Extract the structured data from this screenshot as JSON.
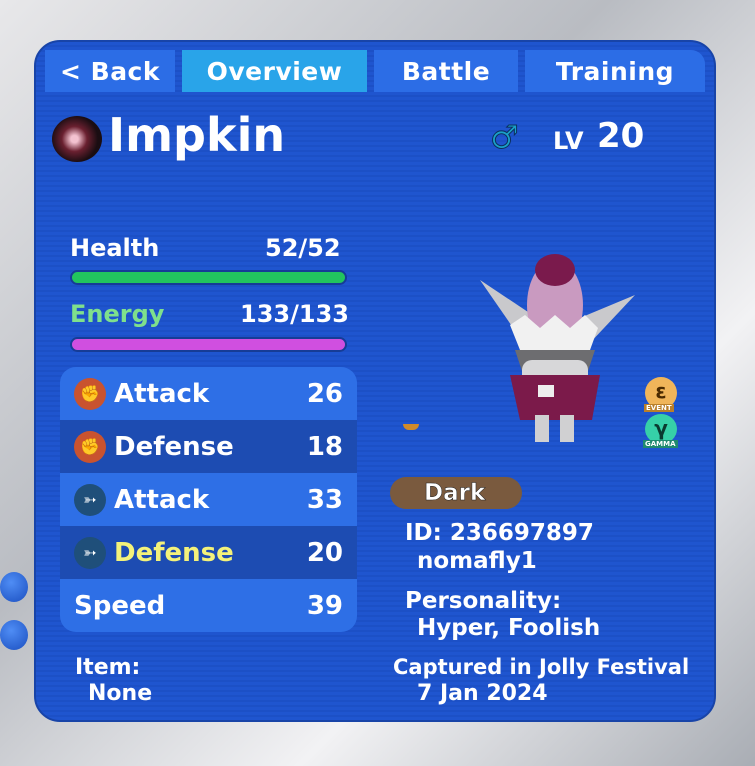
{
  "tabs": [
    {
      "label": "< Back"
    },
    {
      "label": "Overview",
      "active": true
    },
    {
      "label": "Battle"
    },
    {
      "label": "Training"
    }
  ],
  "creature": {
    "name": "Impkin",
    "gender_icon": "male-icon",
    "level_label": "LV",
    "level": "20"
  },
  "health": {
    "label": "Health",
    "value": "52/52",
    "fraction": 1.0,
    "color": "#22c55e"
  },
  "energy": {
    "label": "Energy",
    "value": "133/133",
    "fraction": 1.0,
    "color": "#d04fe0"
  },
  "stats": [
    {
      "icon": "fist-icon",
      "label": "Attack",
      "value": "26"
    },
    {
      "icon": "fist-icon",
      "label": "Defense",
      "value": "18"
    },
    {
      "icon": "arrow-icon",
      "label": "Attack",
      "value": "33"
    },
    {
      "icon": "arrow-icon",
      "label": "Defense",
      "value": "20",
      "highlight": "#f4f27a"
    },
    {
      "label": "Speed",
      "value": "39"
    }
  ],
  "item": {
    "label": "Item:",
    "value": "None"
  },
  "type": {
    "label": "Dark",
    "color": "#7a5a3e"
  },
  "id": {
    "text": "ID: 236697897",
    "owner": "nomafly1"
  },
  "personality": {
    "label": "Personality:",
    "value": "Hyper, Foolish"
  },
  "capture": {
    "text": "Captured in Jolly Festival",
    "date": "7 Jan 2024"
  },
  "badges": [
    {
      "symbol": "ε",
      "label": "EVENT"
    },
    {
      "symbol": "γ",
      "label": "GAMMA"
    }
  ]
}
